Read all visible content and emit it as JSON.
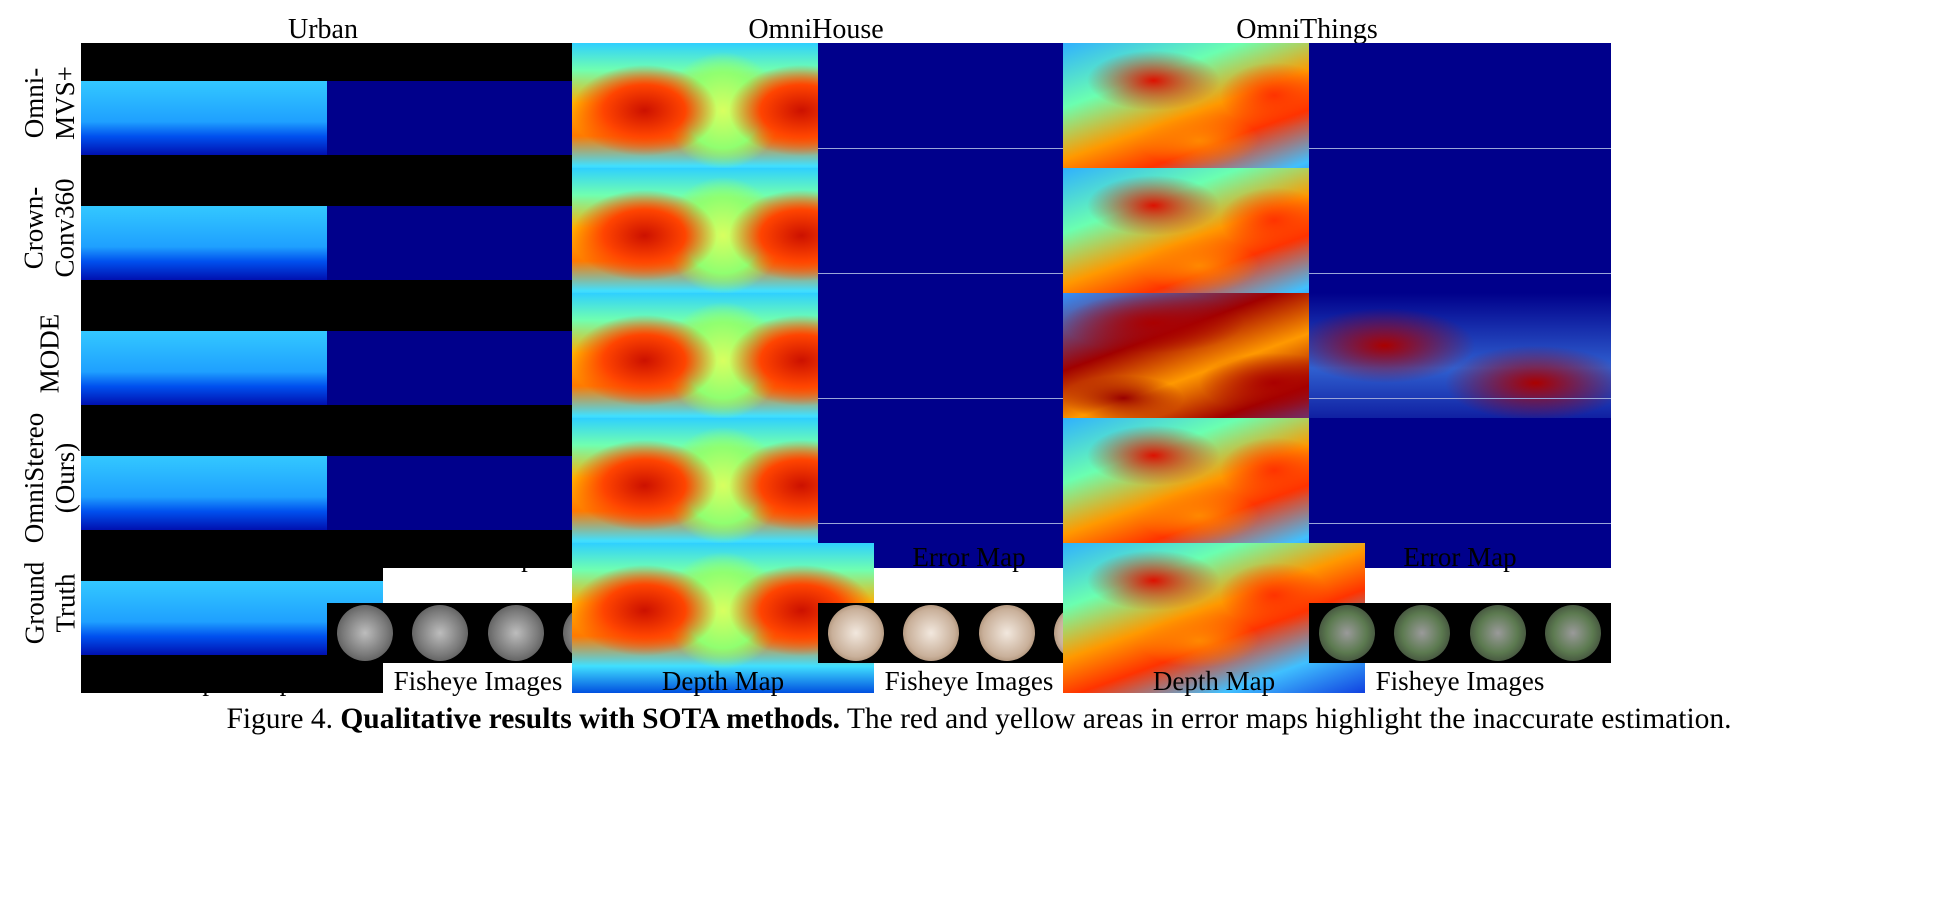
{
  "column_headers": [
    "Urban",
    "OmniHouse",
    "OmniThings"
  ],
  "row_labels": [
    {
      "line1": "Omni-",
      "line2": "MVS+"
    },
    {
      "line1": "Crown-",
      "line2": "Conv360"
    },
    {
      "line1": "MODE",
      "line2": ""
    },
    {
      "line1": "OmniStereo",
      "line2": "(Ours)"
    },
    {
      "line1": "Ground",
      "line2": "Truth"
    }
  ],
  "error_map_label": "Error Map",
  "bottom_labels": [
    "Depth Map",
    "Fisheye Images",
    "Depth Map",
    "Fisheye Images",
    "Depth Map",
    "Fisheye Images"
  ],
  "caption": {
    "prefix": "Figure 4.",
    "bold": "Qualitative results with SOTA methods.",
    "rest": "The red and yellow areas in error maps highlight the inaccurate estimation."
  }
}
